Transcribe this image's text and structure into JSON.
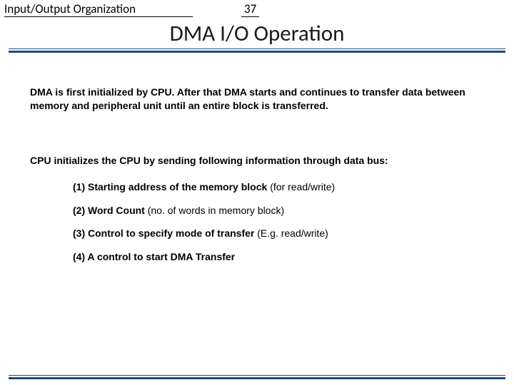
{
  "colors": {
    "rule": "#214a7b",
    "text": "#000000",
    "background": "#ffffff"
  },
  "fonts": {
    "header_family": "Calibri",
    "body_family": "Arial",
    "header_fontsize": 17,
    "title_fontsize": 31,
    "body_fontsize": 14
  },
  "header": {
    "topic": "Input/Output Organization",
    "page_number": "37"
  },
  "title": "DMA I/O Operation",
  "body": {
    "para1": "DMA is first initialized by CPU. After that DMA starts and continues to transfer data between memory and peripheral unit until an entire block is transferred.",
    "para2": "CPU initializes the CPU by sending following information through data bus:",
    "items": [
      {
        "num": "(1)",
        "lead": "Starting address of the memory block",
        "tail": " (for read/write)"
      },
      {
        "num": "(2) ",
        "lead": "Word Count",
        "tail": " (no. of words in memory block)"
      },
      {
        "num": "(3) ",
        "lead": "Control to specify mode of transfer",
        "tail": " (E.g. read/write)"
      },
      {
        "num": "(4)  ",
        "lead": "A control to start DMA Transfer",
        "tail": ""
      }
    ]
  }
}
